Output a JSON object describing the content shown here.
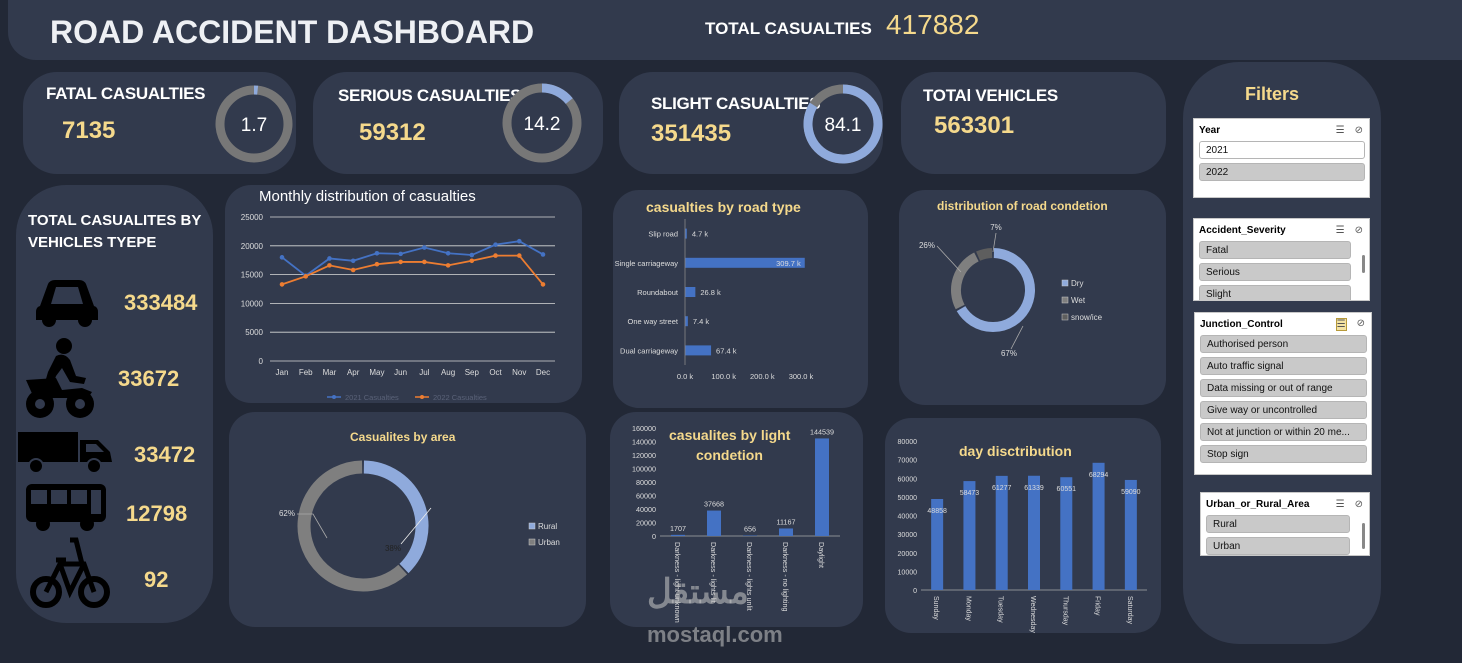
{
  "header": {
    "title": "ROAD ACCIDENT DASHBOARD",
    "total_label": "TOTAL CASUALTIES",
    "total_value": "417882"
  },
  "kpis": [
    {
      "title": "FATAL  CASUALTIES",
      "value": "7135",
      "pct": 1.7,
      "pct_label": "1.7"
    },
    {
      "title": "SERIOUS CASUALTIES",
      "value": "59312",
      "pct": 14.2,
      "pct_label": "14.2"
    },
    {
      "title": "SLIGHT  CASUALTIES",
      "value": "351435",
      "pct": 84.1,
      "pct_label": "84.1"
    },
    {
      "title": "TOTAl VEHICLES",
      "value": "563301"
    }
  ],
  "vehicles": {
    "title_line1": "TOTAL CASUALITES BY",
    "title_line2": "VEHICLES TYEPE",
    "items": [
      {
        "icon": "car-icon",
        "value": "333484"
      },
      {
        "icon": "motorcycle-icon",
        "value": "33672"
      },
      {
        "icon": "truck-icon",
        "value": "33472"
      },
      {
        "icon": "bus-icon",
        "value": "12798"
      },
      {
        "icon": "bicycle-icon",
        "value": "92"
      }
    ]
  },
  "filters": {
    "title": "Filters",
    "slicers": [
      {
        "name": "Year",
        "items": [
          "2021",
          "2022"
        ]
      },
      {
        "name": "Accident_Severity",
        "items": [
          "Fatal",
          "Serious",
          "Slight"
        ]
      },
      {
        "name": "Junction_Control",
        "items": [
          "Authorised person",
          "Auto traffic signal",
          "Data missing or out of range",
          "Give way or uncontrolled",
          "Not at junction or within 20 me...",
          "Stop sign"
        ]
      },
      {
        "name": "Urban_or_Rural_Area",
        "items": [
          "Rural",
          "Urban"
        ]
      }
    ]
  },
  "watermark": {
    "arabic": "مستقل",
    "latin": "mostaql.com"
  },
  "colors": {
    "blue": "#4472c4",
    "orange": "#ed7d31",
    "light_blue": "#8faadc",
    "gray": "#7f7f7f",
    "bg": "#222836",
    "card": "#323a4d",
    "gold": "#f5d98c"
  },
  "chart_data": [
    {
      "id": "monthly",
      "type": "line",
      "title": "Monthly distribution of casualties",
      "categories": [
        "Jan",
        "Feb",
        "Mar",
        "Apr",
        "May",
        "Jun",
        "Jul",
        "Aug",
        "Sep",
        "Oct",
        "Nov",
        "Dec"
      ],
      "series": [
        {
          "name": "2021 Casualties",
          "values": [
            18000,
            14800,
            17800,
            17400,
            18700,
            18600,
            19700,
            18700,
            18400,
            20200,
            20800,
            18500
          ]
        },
        {
          "name": "2022 Casualties",
          "values": [
            13300,
            14700,
            16600,
            15800,
            16800,
            17200,
            17200,
            16600,
            17400,
            18300,
            18300,
            13300
          ]
        }
      ],
      "yticks": [
        0,
        5000,
        10000,
        15000,
        20000,
        25000
      ],
      "ylim": [
        0,
        25000
      ]
    },
    {
      "id": "road_type",
      "type": "bar",
      "orientation": "horizontal",
      "title": "casualties by road type",
      "categories": [
        "Slip road",
        "Single carriageway",
        "Roundabout",
        "One way street",
        "Dual carriageway"
      ],
      "values": [
        4.7,
        309.7,
        26.8,
        7.4,
        67.4
      ],
      "labels": [
        "4.7 k",
        "309.7 k",
        "26.8 k",
        "7.4 k",
        "67.4 k"
      ],
      "xticks": [
        "0.0 k",
        "100.0 k",
        "200.0 k",
        "300.0 k"
      ],
      "xlim": [
        0,
        300
      ]
    },
    {
      "id": "road_condition",
      "type": "pie",
      "title": "distribution of road condetion",
      "categories": [
        "Dry",
        "Wet",
        "snow/ice"
      ],
      "values": [
        67,
        26,
        7
      ],
      "labels": [
        "67%",
        "26%",
        "7%"
      ]
    },
    {
      "id": "area",
      "type": "pie",
      "title": "Casualites by area",
      "categories": [
        "Rural",
        "Urban"
      ],
      "values": [
        38,
        62
      ],
      "labels": [
        "38%",
        "62%"
      ]
    },
    {
      "id": "light",
      "type": "bar",
      "title": "casualites by light condetion",
      "title_line1": "casualites by light",
      "title_line2": "condetion",
      "categories": [
        "Darkness - light unknown",
        "Darkness - lights lit",
        "Darkness - lights unlit",
        "Darkness - no lighting",
        "Daylight"
      ],
      "values": [
        1707,
        37668,
        656,
        11167,
        144539
      ],
      "yticks": [
        0,
        20000,
        40000,
        60000,
        80000,
        100000,
        120000,
        140000,
        160000
      ],
      "ylim": [
        0,
        160000
      ]
    },
    {
      "id": "day",
      "type": "bar",
      "title": "day disctribution",
      "categories": [
        "Sunday",
        "Monday",
        "Tuesday",
        "Wednesday",
        "Thursday",
        "Friday",
        "Saturday"
      ],
      "values": [
        48858,
        58473,
        61277,
        61339,
        60551,
        68294,
        59090
      ],
      "yticks": [
        0,
        10000,
        20000,
        30000,
        40000,
        50000,
        60000,
        70000,
        80000
      ],
      "ylim": [
        0,
        80000
      ]
    }
  ]
}
